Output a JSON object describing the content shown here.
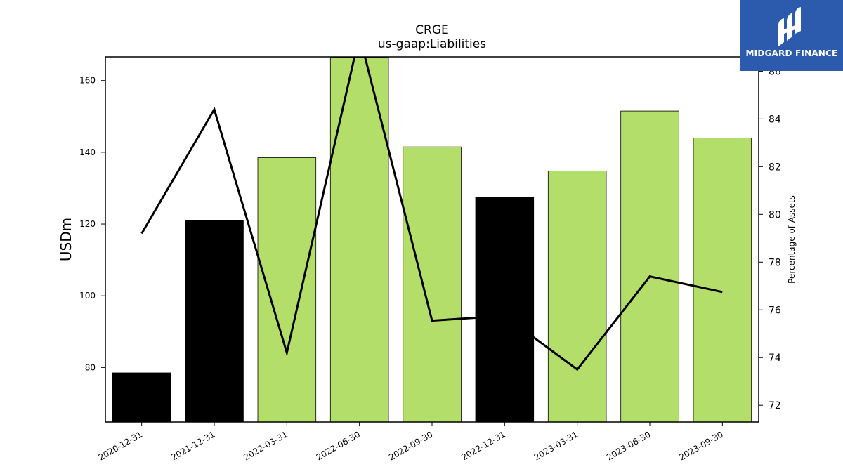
{
  "chart_data": {
    "type": "bar",
    "title": "CRGE",
    "subtitle": "us-gaap:Liabilities",
    "xlabel": "",
    "ylabel": "USDm",
    "ylabel_right": "Percentage of Assets",
    "categories": [
      "2020-12-31",
      "2021-12-31",
      "2022-03-31",
      "2022-06-30",
      "2022-09-30",
      "2022-12-31",
      "2023-03-31",
      "2023-06-30",
      "2023-09-30"
    ],
    "series": [
      {
        "type": "bar",
        "axis": "left",
        "values": [
          78.5,
          121.0,
          138.5,
          166.5,
          141.5,
          127.5,
          134.8,
          151.5,
          144.0
        ],
        "colors": [
          "#000000",
          "#000000",
          "#b3de69",
          "#b3de69",
          "#b3de69",
          "#000000",
          "#b3de69",
          "#b3de69",
          "#b3de69"
        ]
      },
      {
        "type": "line",
        "axis": "right",
        "color": "#000000",
        "values": [
          79.2,
          84.4,
          74.2,
          87.5,
          75.55,
          75.75,
          73.5,
          77.4,
          76.75
        ]
      }
    ],
    "ylim": [
      64.8,
      166.6
    ],
    "ylim_right": [
      71.3,
      86.6
    ],
    "yticks": [
      80,
      100,
      120,
      140,
      160
    ],
    "yticks_right": [
      72,
      74,
      76,
      78,
      80,
      82,
      84,
      86
    ],
    "grid": false
  },
  "logo": {
    "text": "MIDGARD FINANCE",
    "background": "#2c5aad"
  }
}
